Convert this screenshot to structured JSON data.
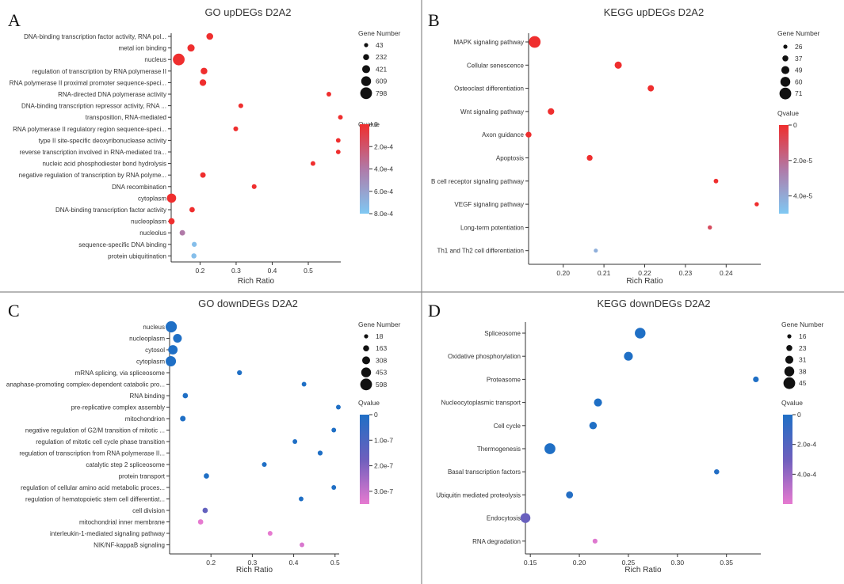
{
  "chart_data": [
    {
      "type": "scatter",
      "panel_label": "A",
      "title": "GO upDEGs D2A2",
      "xlabel": "Rich Ratio",
      "ylabel": "",
      "xlim": [
        0.12,
        0.59
      ],
      "xticks": [
        0.2,
        0.3,
        0.4,
        0.5
      ],
      "xtick_labels": [
        "0.2",
        "0.3",
        "0.4",
        "0.5"
      ],
      "size_legend_title": "Gene Number",
      "size_legend": [
        43,
        232,
        421,
        609,
        798
      ],
      "size_range": [
        43,
        798
      ],
      "color_legend_title": "Qvalue",
      "color_range": [
        0,
        0.0008
      ],
      "color_ticks": [
        0,
        0.0002,
        0.0004,
        0.0006,
        0.0008
      ],
      "color_tick_labels": [
        "0",
        "2.0e-4",
        "4.0e-4",
        "6.0e-4",
        "8.0e-4"
      ],
      "color_low": "#ef2e2e",
      "color_high": "#7fc8f3",
      "categories": [
        "DNA-binding transcription factor activity, RNA pol...",
        "metal ion binding",
        "nucleus",
        "regulation of transcription by RNA polymerase II",
        "RNA polymerase II proximal promoter sequence-speci...",
        "RNA-directed DNA polymerase activity",
        "DNA-binding transcription repressor activity, RNA ...",
        "transposition, RNA-mediated",
        "RNA polymerase II regulatory region sequence-speci...",
        "type II site-specific deoxyribonuclease activity",
        "reverse transcription involved in RNA-mediated tra...",
        "nucleic acid phosphodiester bond hydrolysis",
        "negative regulation of transcription by RNA polyme...",
        "DNA recombination",
        "cytoplasm",
        "DNA-binding transcription factor activity",
        "nucleoplasm",
        "nucleolus",
        "sequence-specific DNA binding",
        "protein ubiquitination"
      ],
      "rich_ratio": [
        0.227,
        0.175,
        0.141,
        0.211,
        0.208,
        0.557,
        0.313,
        0.589,
        0.299,
        0.583,
        0.583,
        0.513,
        0.208,
        0.35,
        0.121,
        0.178,
        0.121,
        0.151,
        0.184,
        0.183
      ],
      "gene_number": [
        310,
        350,
        798,
        300,
        290,
        100,
        110,
        100,
        110,
        90,
        90,
        100,
        180,
        110,
        550,
        170,
        250,
        180,
        130,
        150
      ],
      "qvalue": [
        0,
        0,
        0,
        0,
        0,
        0,
        0,
        0,
        0,
        0,
        0,
        0,
        0,
        0,
        0,
        0,
        0,
        0.0004,
        0.00075,
        0.00075
      ]
    },
    {
      "type": "scatter",
      "panel_label": "B",
      "title": "KEGG upDEGs D2A2",
      "xlabel": "Rich Ratio",
      "ylabel": "",
      "xlim": [
        0.1915,
        0.2485
      ],
      "xticks": [
        0.2,
        0.21,
        0.22,
        0.23,
        0.24
      ],
      "xtick_labels": [
        "0.20",
        "0.21",
        "0.22",
        "0.23",
        "0.24"
      ],
      "size_legend_title": "Gene Number",
      "size_legend": [
        26,
        37,
        49,
        60,
        71
      ],
      "size_range": [
        26,
        71
      ],
      "color_legend_title": "Qvalue",
      "color_range": [
        0,
        5e-05
      ],
      "color_ticks": [
        0,
        2e-05,
        4e-05
      ],
      "color_tick_labels": [
        "0",
        "2.0e-5",
        "4.0e-5"
      ],
      "color_low": "#ef2e2e",
      "color_high": "#7fc8f3",
      "categories": [
        "MAPK signaling pathway",
        "Cellular senescence",
        "Osteoclast differentiation",
        "Wnt signaling pathway",
        "Axon guidance",
        "Apoptosis",
        "B cell receptor signaling pathway",
        "VEGF signaling pathway",
        "Long-term potentiation",
        "Th1 and Th2 cell differentiation"
      ],
      "rich_ratio": [
        0.193,
        0.2135,
        0.2215,
        0.197,
        0.1915,
        0.2065,
        0.2375,
        0.2475,
        0.236,
        0.208
      ],
      "gene_number": [
        71,
        44,
        39,
        40,
        36,
        36,
        29,
        27,
        27,
        26
      ],
      "qvalue": [
        0,
        0,
        0,
        0,
        0,
        0,
        0,
        0,
        1e-05,
        4.2e-05
      ]
    },
    {
      "type": "scatter",
      "panel_label": "C",
      "title": "GO downDEGs D2A2",
      "xlabel": "Rich Ratio",
      "ylabel": "",
      "xlim": [
        0.1,
        0.51
      ],
      "xticks": [
        0.2,
        0.3,
        0.4,
        0.5
      ],
      "xtick_labels": [
        "0.2",
        "0.3",
        "0.4",
        "0.5"
      ],
      "size_legend_title": "Gene Number",
      "size_legend": [
        18,
        163,
        308,
        453,
        598
      ],
      "size_range": [
        18,
        598
      ],
      "color_legend_title": "Qvalue",
      "color_range": [
        0,
        3.5e-07
      ],
      "color_ticks": [
        0,
        1e-07,
        2e-07,
        3e-07
      ],
      "color_tick_labels": [
        "0",
        "1.0e-7",
        "2.0e-7",
        "3.0e-7"
      ],
      "color_low": "#1f6fc5",
      "color_high": "#e67ad0",
      "categories": [
        "nucleus",
        "nucleoplasm",
        "cytosol",
        "cytoplasm",
        "mRNA splicing, via spliceosome",
        "anaphase-promoting complex-dependent catabolic pro...",
        "RNA binding",
        "pre-replicative complex assembly",
        "mitochondrion",
        "negative regulation of G2/M transition of mitotic ...",
        "regulation of mitotic cell cycle phase transition",
        "regulation of transcription from RNA polymerase II...",
        "catalytic step 2 spliceosome",
        "protein transport",
        "regulation of cellular amino acid metabolic proces...",
        "regulation of hematopoietic stem cell differentiat...",
        "cell division",
        "mitochondrial inner membrane",
        "interleukin-1-mediated signaling pathway",
        "NIK/NF-kappaB signaling"
      ],
      "rich_ratio": [
        0.104,
        0.119,
        0.108,
        0.103,
        0.269,
        0.425,
        0.138,
        0.508,
        0.132,
        0.497,
        0.403,
        0.464,
        0.329,
        0.189,
        0.497,
        0.418,
        0.186,
        0.175,
        0.343,
        0.42
      ],
      "gene_number": [
        560,
        370,
        420,
        490,
        80,
        60,
        110,
        60,
        130,
        60,
        60,
        80,
        70,
        110,
        60,
        60,
        110,
        110,
        70,
        60
      ],
      "qvalue": [
        0,
        0,
        0,
        0,
        0,
        0,
        0,
        0,
        0,
        0,
        0,
        0,
        0,
        0,
        0,
        0,
        1.5e-07,
        3.5e-07,
        3.5e-07,
        3.3e-07
      ]
    },
    {
      "type": "scatter",
      "panel_label": "D",
      "title": "KEGG downDEGs D2A2",
      "xlabel": "Rich Ratio",
      "ylabel": "",
      "xlim": [
        0.145,
        0.385
      ],
      "xticks": [
        0.15,
        0.2,
        0.25,
        0.3,
        0.35
      ],
      "xtick_labels": [
        "0.15",
        "0.20",
        "0.25",
        "0.30",
        "0.35"
      ],
      "size_legend_title": "Gene Number",
      "size_legend": [
        16,
        23,
        31,
        38,
        45
      ],
      "size_range": [
        16,
        45
      ],
      "color_legend_title": "Qvalue",
      "color_range": [
        0,
        0.0006
      ],
      "color_ticks": [
        0,
        0.0002,
        0.0004
      ],
      "color_tick_labels": [
        "0",
        "2.0e-4",
        "4.0e-4"
      ],
      "color_low": "#1f6fc5",
      "color_high": "#e67ad0",
      "categories": [
        "Spliceosome",
        "Oxidative phosphorylation",
        "Proteasome",
        "Nucleocytoplasmic transport",
        "Cell cycle",
        "Thermogenesis",
        "Basal transcription factors",
        "Ubiquitin mediated proteolysis",
        "Endocytosis",
        "RNA degradation"
      ],
      "rich_ratio": [
        0.262,
        0.25,
        0.38,
        0.219,
        0.214,
        0.17,
        0.34,
        0.19,
        0.145,
        0.216
      ],
      "gene_number": [
        41,
        34,
        22,
        31,
        29,
        42,
        20,
        27,
        38,
        19
      ],
      "qvalue": [
        0,
        0,
        0,
        0,
        0,
        0,
        1e-05,
        2e-05,
        0.00028,
        0.00058
      ]
    }
  ]
}
